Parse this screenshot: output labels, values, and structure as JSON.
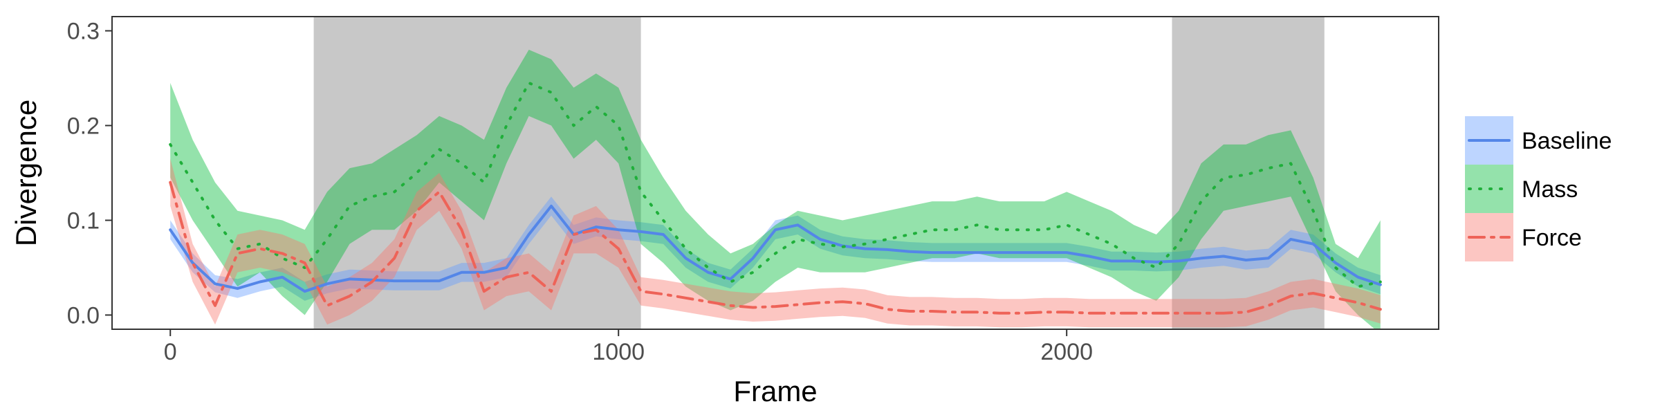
{
  "chart_data": {
    "type": "line",
    "title": "",
    "xlabel": "Frame",
    "ylabel": "Divergence",
    "xlim": [
      -130,
      2830
    ],
    "ylim": [
      -0.015,
      0.315
    ],
    "x_ticks": [
      0,
      1000,
      2000
    ],
    "x_tick_labels": [
      "0",
      "1000",
      "2000"
    ],
    "y_ticks": [
      0.0,
      0.1,
      0.2,
      0.3
    ],
    "y_tick_labels": [
      "0.0",
      "0.1",
      "0.2",
      "0.3"
    ],
    "grid": false,
    "legend": {
      "position": "right"
    },
    "shaded_regions": [
      {
        "x_start": 320,
        "x_end": 1050,
        "color": "#c8c8c8"
      },
      {
        "x_start": 2235,
        "x_end": 2575,
        "color": "#c8c8c8"
      }
    ],
    "series": [
      {
        "name": "Baseline",
        "color": "#619CFF",
        "line_color": "#5486E8",
        "linestyle": "solid",
        "x": [
          0,
          50,
          100,
          150,
          200,
          250,
          300,
          350,
          400,
          450,
          500,
          550,
          600,
          650,
          700,
          750,
          800,
          850,
          900,
          950,
          1000,
          1050,
          1100,
          1150,
          1200,
          1250,
          1300,
          1350,
          1400,
          1450,
          1500,
          1550,
          1600,
          1650,
          1700,
          1750,
          1800,
          1850,
          1900,
          1950,
          2000,
          2050,
          2100,
          2150,
          2200,
          2250,
          2300,
          2350,
          2400,
          2450,
          2500,
          2550,
          2600,
          2650,
          2700
        ],
        "y": [
          0.09,
          0.055,
          0.033,
          0.028,
          0.035,
          0.04,
          0.025,
          0.033,
          0.038,
          0.037,
          0.036,
          0.036,
          0.036,
          0.045,
          0.045,
          0.05,
          0.085,
          0.115,
          0.085,
          0.093,
          0.09,
          0.088,
          0.085,
          0.06,
          0.045,
          0.038,
          0.06,
          0.09,
          0.095,
          0.08,
          0.073,
          0.07,
          0.069,
          0.067,
          0.066,
          0.066,
          0.066,
          0.066,
          0.066,
          0.066,
          0.066,
          0.062,
          0.057,
          0.057,
          0.056,
          0.057,
          0.06,
          0.062,
          0.058,
          0.06,
          0.08,
          0.075,
          0.055,
          0.04,
          0.032
        ],
        "upper": [
          0.1,
          0.065,
          0.042,
          0.038,
          0.045,
          0.05,
          0.035,
          0.043,
          0.048,
          0.047,
          0.046,
          0.046,
          0.046,
          0.055,
          0.055,
          0.06,
          0.095,
          0.125,
          0.095,
          0.103,
          0.1,
          0.098,
          0.095,
          0.07,
          0.055,
          0.048,
          0.07,
          0.1,
          0.105,
          0.09,
          0.083,
          0.08,
          0.079,
          0.077,
          0.076,
          0.076,
          0.076,
          0.076,
          0.076,
          0.076,
          0.076,
          0.072,
          0.067,
          0.067,
          0.066,
          0.067,
          0.07,
          0.072,
          0.068,
          0.07,
          0.09,
          0.085,
          0.065,
          0.05,
          0.042
        ],
        "lower": [
          0.08,
          0.045,
          0.024,
          0.018,
          0.025,
          0.03,
          0.015,
          0.023,
          0.028,
          0.027,
          0.026,
          0.026,
          0.026,
          0.035,
          0.035,
          0.04,
          0.075,
          0.105,
          0.075,
          0.083,
          0.08,
          0.078,
          0.075,
          0.05,
          0.035,
          0.028,
          0.05,
          0.08,
          0.085,
          0.07,
          0.063,
          0.06,
          0.059,
          0.057,
          0.056,
          0.056,
          0.056,
          0.056,
          0.056,
          0.056,
          0.056,
          0.052,
          0.047,
          0.047,
          0.046,
          0.047,
          0.05,
          0.052,
          0.048,
          0.05,
          0.07,
          0.065,
          0.045,
          0.03,
          0.022
        ]
      },
      {
        "name": "Mass",
        "color": "#00BA38",
        "line_color": "#1FAF3A",
        "linestyle": "dotted",
        "x": [
          0,
          50,
          100,
          150,
          200,
          250,
          300,
          350,
          400,
          450,
          500,
          550,
          600,
          650,
          700,
          750,
          800,
          850,
          900,
          950,
          1000,
          1050,
          1100,
          1150,
          1200,
          1250,
          1300,
          1350,
          1400,
          1450,
          1500,
          1550,
          1600,
          1650,
          1700,
          1750,
          1800,
          1850,
          1900,
          1950,
          2000,
          2050,
          2100,
          2150,
          2200,
          2250,
          2300,
          2350,
          2400,
          2450,
          2500,
          2550,
          2600,
          2650,
          2700
        ],
        "y": [
          0.18,
          0.14,
          0.1,
          0.07,
          0.075,
          0.06,
          0.05,
          0.08,
          0.115,
          0.125,
          0.13,
          0.15,
          0.175,
          0.16,
          0.14,
          0.2,
          0.245,
          0.235,
          0.2,
          0.22,
          0.2,
          0.13,
          0.1,
          0.07,
          0.05,
          0.035,
          0.045,
          0.065,
          0.08,
          0.075,
          0.072,
          0.075,
          0.08,
          0.085,
          0.09,
          0.09,
          0.095,
          0.09,
          0.09,
          0.09,
          0.095,
          0.085,
          0.075,
          0.06,
          0.05,
          0.075,
          0.12,
          0.145,
          0.148,
          0.155,
          0.16,
          0.11,
          0.05,
          0.03,
          0.035
        ],
        "upper": [
          0.245,
          0.185,
          0.14,
          0.11,
          0.105,
          0.1,
          0.09,
          0.13,
          0.155,
          0.16,
          0.175,
          0.19,
          0.21,
          0.2,
          0.185,
          0.24,
          0.28,
          0.27,
          0.24,
          0.255,
          0.24,
          0.185,
          0.145,
          0.11,
          0.085,
          0.065,
          0.075,
          0.095,
          0.11,
          0.105,
          0.1,
          0.105,
          0.11,
          0.115,
          0.12,
          0.12,
          0.125,
          0.12,
          0.12,
          0.12,
          0.13,
          0.12,
          0.11,
          0.095,
          0.085,
          0.11,
          0.16,
          0.18,
          0.18,
          0.19,
          0.195,
          0.145,
          0.075,
          0.06,
          0.1
        ],
        "lower": [
          0.145,
          0.1,
          0.065,
          0.03,
          0.045,
          0.02,
          0.0,
          0.035,
          0.075,
          0.09,
          0.09,
          0.11,
          0.14,
          0.12,
          0.1,
          0.16,
          0.21,
          0.2,
          0.165,
          0.185,
          0.16,
          0.075,
          0.055,
          0.03,
          0.015,
          0.005,
          0.015,
          0.035,
          0.05,
          0.045,
          0.045,
          0.045,
          0.05,
          0.055,
          0.06,
          0.06,
          0.065,
          0.06,
          0.06,
          0.06,
          0.06,
          0.05,
          0.04,
          0.025,
          0.015,
          0.04,
          0.08,
          0.11,
          0.115,
          0.12,
          0.125,
          0.075,
          0.025,
          0.0,
          -0.02
        ]
      },
      {
        "name": "Force",
        "color": "#F8766D",
        "line_color": "#EE6358",
        "linestyle": "dashdot",
        "x": [
          0,
          50,
          100,
          150,
          200,
          250,
          300,
          350,
          400,
          450,
          500,
          550,
          600,
          650,
          700,
          750,
          800,
          850,
          900,
          950,
          1000,
          1050,
          1100,
          1150,
          1200,
          1250,
          1300,
          1350,
          1400,
          1450,
          1500,
          1550,
          1600,
          1650,
          1700,
          1750,
          1800,
          1850,
          1900,
          1950,
          2000,
          2050,
          2100,
          2150,
          2200,
          2250,
          2300,
          2350,
          2400,
          2450,
          2500,
          2550,
          2600,
          2650,
          2700
        ],
        "y": [
          0.14,
          0.055,
          0.01,
          0.065,
          0.07,
          0.065,
          0.055,
          0.01,
          0.02,
          0.035,
          0.06,
          0.11,
          0.13,
          0.09,
          0.025,
          0.04,
          0.045,
          0.025,
          0.085,
          0.09,
          0.07,
          0.025,
          0.022,
          0.018,
          0.014,
          0.01,
          0.008,
          0.009,
          0.011,
          0.013,
          0.014,
          0.012,
          0.006,
          0.004,
          0.004,
          0.003,
          0.003,
          0.002,
          0.002,
          0.003,
          0.003,
          0.002,
          0.002,
          0.002,
          0.002,
          0.002,
          0.002,
          0.002,
          0.003,
          0.01,
          0.02,
          0.023,
          0.018,
          0.013,
          0.006
        ],
        "upper": [
          0.165,
          0.075,
          0.03,
          0.085,
          0.09,
          0.085,
          0.075,
          0.03,
          0.04,
          0.055,
          0.08,
          0.13,
          0.15,
          0.11,
          0.045,
          0.06,
          0.065,
          0.045,
          0.105,
          0.115,
          0.09,
          0.04,
          0.037,
          0.033,
          0.029,
          0.025,
          0.023,
          0.024,
          0.026,
          0.028,
          0.029,
          0.027,
          0.021,
          0.019,
          0.019,
          0.018,
          0.018,
          0.017,
          0.017,
          0.018,
          0.018,
          0.017,
          0.017,
          0.017,
          0.017,
          0.017,
          0.017,
          0.017,
          0.018,
          0.025,
          0.035,
          0.038,
          0.033,
          0.028,
          0.021
        ],
        "lower": [
          0.115,
          0.035,
          -0.01,
          0.045,
          0.05,
          0.045,
          0.035,
          -0.01,
          0.0,
          0.015,
          0.04,
          0.09,
          0.11,
          0.07,
          0.005,
          0.02,
          0.025,
          0.005,
          0.065,
          0.065,
          0.05,
          0.01,
          0.007,
          0.003,
          -0.001,
          -0.005,
          -0.007,
          -0.006,
          -0.004,
          -0.002,
          -0.001,
          -0.003,
          -0.009,
          -0.011,
          -0.011,
          -0.012,
          -0.012,
          -0.013,
          -0.013,
          -0.012,
          -0.012,
          -0.013,
          -0.013,
          -0.013,
          -0.013,
          -0.013,
          -0.013,
          -0.013,
          -0.012,
          -0.005,
          0.005,
          0.008,
          0.003,
          -0.002,
          -0.009
        ]
      }
    ]
  }
}
